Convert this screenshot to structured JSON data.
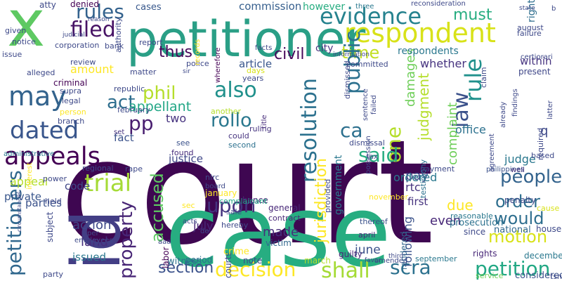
{
  "wordcloud": {
    "words": [
      {
        "text": "court",
        "color": "#3e0751"
      },
      {
        "text": "case",
        "color": "#27ad81"
      },
      {
        "text": "id",
        "color": "#433e85"
      },
      {
        "text": "x",
        "color": "#5ec962"
      },
      {
        "text": "petitioner",
        "color": "#2a9f86"
      },
      {
        "text": "respondent",
        "color": "#d8e219"
      },
      {
        "text": "evidence",
        "color": "#26828e"
      },
      {
        "text": "filed",
        "color": "#471365"
      },
      {
        "text": "rules",
        "color": "#33628d"
      },
      {
        "text": "may",
        "color": "#33638d"
      },
      {
        "text": "cases",
        "color": "#38588c"
      },
      {
        "text": "commission",
        "color": "#355e8d"
      },
      {
        "text": "however",
        "color": "#27ad81"
      },
      {
        "text": "must",
        "color": "#27ad81"
      },
      {
        "text": "time",
        "color": "#c2df23"
      },
      {
        "text": "thus",
        "color": "#46075a"
      },
      {
        "text": "civil",
        "color": "#46075a"
      },
      {
        "text": "also",
        "color": "#21918c"
      },
      {
        "text": "public",
        "color": "#2c718e"
      },
      {
        "text": "rule",
        "color": "#21918c"
      },
      {
        "text": "law",
        "color": "#3b518b"
      },
      {
        "text": "ca",
        "color": "#2d708e"
      },
      {
        "text": "pp",
        "color": "#481d6f"
      },
      {
        "text": "act",
        "color": "#2e6e8e"
      },
      {
        "text": "dated",
        "color": "#39568c"
      },
      {
        "text": "appeals",
        "color": "#440154"
      },
      {
        "text": "rollo",
        "color": "#2a788e"
      },
      {
        "text": "phil",
        "color": "#b5de2b"
      },
      {
        "text": "one",
        "color": "#b5de2b"
      },
      {
        "text": "resolution",
        "color": "#2c718e"
      },
      {
        "text": "said",
        "color": "#27ad81"
      },
      {
        "text": "trial",
        "color": "#a5db36"
      },
      {
        "text": "people",
        "color": "#33638d"
      },
      {
        "text": "would",
        "color": "#2e6e8e"
      },
      {
        "text": "order",
        "color": "#2e6e8e"
      },
      {
        "text": "petition",
        "color": "#22a884"
      },
      {
        "text": "motion",
        "color": "#d8e219"
      },
      {
        "text": "property",
        "color": "#482576"
      },
      {
        "text": "accused",
        "color": "#5ec962"
      },
      {
        "text": "upon",
        "color": "#46337f"
      },
      {
        "text": "decision",
        "color": "#fde725"
      },
      {
        "text": "section",
        "color": "#3b528b"
      },
      {
        "text": "shall",
        "color": "#a5db36"
      },
      {
        "text": "scra",
        "color": "#2c718e"
      },
      {
        "text": "petitioners",
        "color": "#31688e"
      },
      {
        "text": "judgment",
        "color": "#b5de2b"
      },
      {
        "text": "damages",
        "color": "#6ece58"
      },
      {
        "text": "complaint",
        "color": "#6ece58"
      },
      {
        "text": "jurisdiction",
        "color": "#fde725"
      },
      {
        "text": "appeal",
        "color": "#b5de2b"
      },
      {
        "text": "private",
        "color": "#39568c"
      },
      {
        "text": "amount",
        "color": "#fde725"
      },
      {
        "text": "appellant",
        "color": "#21a685"
      },
      {
        "text": "government",
        "color": "#2a788e"
      },
      {
        "text": "office",
        "color": "#2c718e"
      },
      {
        "text": "justice",
        "color": "#3f4788"
      },
      {
        "text": "code",
        "color": "#3f4788"
      },
      {
        "text": "parties",
        "color": "#3b528b"
      },
      {
        "text": "land",
        "color": "#472d7b"
      },
      {
        "text": "action",
        "color": "#3e4989"
      },
      {
        "text": "issued",
        "color": "#2a788e"
      },
      {
        "text": "two",
        "color": "#46337f"
      },
      {
        "text": "fact",
        "color": "#3b528b"
      },
      {
        "text": "due",
        "color": "#fde725"
      },
      {
        "text": "pay",
        "color": "#3e4989"
      },
      {
        "text": "made",
        "color": "#472d7b"
      },
      {
        "text": "june",
        "color": "#3b528b"
      },
      {
        "text": "even",
        "color": "#482878"
      },
      {
        "text": "first",
        "color": "#46337f"
      },
      {
        "text": "judge",
        "color": "#2a788e"
      },
      {
        "text": "whether",
        "color": "#46337f"
      },
      {
        "text": "respondents",
        "color": "#2a788e"
      },
      {
        "text": "article",
        "color": "#39568c"
      },
      {
        "text": "city",
        "color": "#46337f"
      },
      {
        "text": "ordered",
        "color": "#2a788e"
      },
      {
        "text": "rtc",
        "color": "#46337f"
      },
      {
        "text": "within",
        "color": "#46337f"
      },
      {
        "text": "july",
        "color": "#482878"
      },
      {
        "text": "right",
        "color": "#2e6e8e"
      },
      {
        "text": "following",
        "color": "#3b528b"
      },
      {
        "text": "prosecution",
        "color": "#2c718e"
      },
      {
        "text": "national",
        "color": "#31688e"
      },
      {
        "text": "since",
        "color": "#3e4989"
      },
      {
        "text": "penalty",
        "color": "#3e4989"
      },
      {
        "text": "present",
        "color": "#3f4788"
      },
      {
        "text": "reasonable",
        "color": "#2a788e"
      },
      {
        "text": "considered",
        "color": "#3b528b"
      },
      {
        "text": "witness",
        "color": "#2c718e"
      },
      {
        "text": "courts",
        "color": "#3e4989"
      },
      {
        "text": "period",
        "color": "#2c718e"
      },
      {
        "text": "labor",
        "color": "#440154"
      },
      {
        "text": "crime",
        "color": "#fde725"
      },
      {
        "text": "note",
        "color": "#3e4989"
      },
      {
        "text": "victim",
        "color": "#31688e"
      },
      {
        "text": "guilty",
        "color": "#482878"
      },
      {
        "text": "march",
        "color": "#b5de2b"
      },
      {
        "text": "rendered",
        "color": "#31688e"
      },
      {
        "text": "september",
        "color": "#2a788e"
      },
      {
        "text": "december",
        "color": "#2a788e"
      },
      {
        "text": "rights",
        "color": "#482878"
      },
      {
        "text": "service",
        "color": "#6ece58"
      },
      {
        "text": "house",
        "color": "#3e4989"
      },
      {
        "text": "cause",
        "color": "#d8e219"
      },
      {
        "text": "april",
        "color": "#482878"
      },
      {
        "text": "november",
        "color": "#fde725"
      },
      {
        "text": "thereof",
        "color": "#3b528b"
      },
      {
        "text": "testimony",
        "color": "#2c718e"
      },
      {
        "text": "provided",
        "color": "#3e4989"
      },
      {
        "text": "general",
        "color": "#482878"
      },
      {
        "text": "contract",
        "color": "#482878"
      },
      {
        "text": "hence",
        "color": "#482878"
      },
      {
        "text": "sale",
        "color": "#3e4989"
      },
      {
        "text": "complainant",
        "color": "#21a685"
      },
      {
        "text": "second",
        "color": "#2c718e"
      },
      {
        "text": "could",
        "color": "#46337f"
      },
      {
        "text": "found",
        "color": "#472d7b"
      },
      {
        "text": "see",
        "color": "#3b528b"
      },
      {
        "text": "payment",
        "color": "#3e4989"
      },
      {
        "text": "philippines",
        "color": "#3b528b"
      },
      {
        "text": "well",
        "color": "#46337f"
      },
      {
        "text": "ruling",
        "color": "#46337f"
      },
      {
        "text": "title",
        "color": "#472d7b"
      },
      {
        "text": "another",
        "color": "#b5de2b"
      },
      {
        "text": "days",
        "color": "#d8e219"
      },
      {
        "text": "years",
        "color": "#3e4989"
      },
      {
        "text": "republic",
        "color": "#3e4989"
      },
      {
        "text": "february",
        "color": "#3e4989"
      },
      {
        "text": "set",
        "color": "#46337f"
      },
      {
        "text": "matter",
        "color": "#3e4989"
      },
      {
        "text": "police",
        "color": "#3e4989"
      },
      {
        "text": "sir",
        "color": "#3e4989"
      },
      {
        "text": "records",
        "color": "#fde725"
      },
      {
        "text": "report",
        "color": "#3e4989"
      },
      {
        "text": "authority",
        "color": "#3e4989"
      },
      {
        "text": "bank",
        "color": "#3e4989"
      },
      {
        "text": "corporation",
        "color": "#3e4989"
      },
      {
        "text": "judicial",
        "color": "#3e4989"
      },
      {
        "text": "denied",
        "color": "#440154"
      },
      {
        "text": "atty",
        "color": "#3e4989"
      },
      {
        "text": "given",
        "color": "#3e4989"
      },
      {
        "text": "notice",
        "color": "#3e4989"
      },
      {
        "text": "issue",
        "color": "#3e4989"
      },
      {
        "text": "review",
        "color": "#3e4989"
      },
      {
        "text": "alleged",
        "color": "#3e4989"
      },
      {
        "text": "criminal",
        "color": "#440154"
      },
      {
        "text": "legal",
        "color": "#3e4989"
      },
      {
        "text": "supra",
        "color": "#3e4989"
      },
      {
        "text": "person",
        "color": "#fde725"
      },
      {
        "text": "branch",
        "color": "#3e4989"
      },
      {
        "text": "administrative",
        "color": "#2a788e"
      },
      {
        "text": "regional",
        "color": "#3e4989"
      },
      {
        "text": "power",
        "color": "#3e4989"
      },
      {
        "text": "held",
        "color": "#3e4989"
      },
      {
        "text": "interest",
        "color": "#fde725"
      },
      {
        "text": "subject",
        "color": "#3e4989"
      },
      {
        "text": "employees",
        "color": "#3e4989"
      },
      {
        "text": "per",
        "color": "#3e4989"
      },
      {
        "text": "party",
        "color": "#3e4989"
      },
      {
        "text": "rape",
        "color": "#3e4989"
      },
      {
        "text": "january",
        "color": "#fde725"
      },
      {
        "text": "board",
        "color": "#3e4989"
      },
      {
        "text": "nlrc",
        "color": "#3e4989"
      },
      {
        "text": "sec",
        "color": "#fde725"
      },
      {
        "text": "acts",
        "color": "#3e4989"
      },
      {
        "text": "de",
        "color": "#3e4989"
      },
      {
        "text": "hereby",
        "color": "#3e4989"
      },
      {
        "text": "wherefore",
        "color": "#440154"
      },
      {
        "text": "three",
        "color": "#2a788e"
      },
      {
        "text": "reconsideration",
        "color": "#3e4989"
      },
      {
        "text": "state",
        "color": "#3e4989"
      },
      {
        "text": "b",
        "color": "#3e4989"
      },
      {
        "text": "failure",
        "color": "#3e4989"
      },
      {
        "text": "august",
        "color": "#3e4989"
      },
      {
        "text": "certiorari",
        "color": "#3e4989"
      },
      {
        "text": "facts",
        "color": "#3e4989"
      },
      {
        "text": "information",
        "color": "#3e4989"
      },
      {
        "text": "committed",
        "color": "#3e4989"
      },
      {
        "text": "dismissed",
        "color": "#3e4989"
      },
      {
        "text": "dismissal",
        "color": "#3e4989"
      },
      {
        "text": "failed",
        "color": "#3e4989"
      },
      {
        "text": "possession",
        "color": "#3e4989"
      },
      {
        "text": "tax",
        "color": "#3e4989"
      },
      {
        "text": "already",
        "color": "#3e4989"
      },
      {
        "text": "findings",
        "color": "#3e4989"
      },
      {
        "text": "latter",
        "color": "#3e4989"
      },
      {
        "text": "based",
        "color": "#3e4989"
      },
      {
        "text": "required",
        "color": "#3e4989"
      },
      {
        "text": "q",
        "color": "#3e4989"
      },
      {
        "text": "agreement",
        "color": "#3e4989"
      },
      {
        "text": "claim",
        "color": "#3e4989"
      },
      {
        "text": "sentence",
        "color": "#3e4989"
      },
      {
        "text": "tsn",
        "color": "#3e4989"
      },
      {
        "text": "amended",
        "color": "#3e4989"
      },
      {
        "text": "reason",
        "color": "#3e4989"
      },
      {
        "text": "third",
        "color": "#3e4989"
      },
      {
        "text": "favor",
        "color": "#3e4989"
      },
      {
        "text": "aaa",
        "color": "#3e4989"
      },
      {
        "text": "circumstances",
        "color": "#3e4989"
      }
    ]
  }
}
